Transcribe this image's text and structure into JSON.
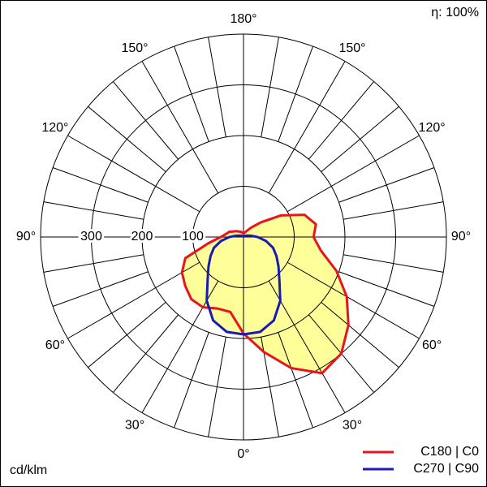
{
  "chart_data": {
    "type": "polar",
    "annotation": "η: 100%",
    "unit_label": "cd/klm",
    "angles": [
      0,
      10,
      20,
      30,
      40,
      50,
      60,
      70,
      80,
      90,
      100,
      110,
      120,
      130,
      140,
      150,
      160,
      170,
      180
    ],
    "angle_ticks": [
      {
        "value": 0,
        "label": "0°"
      },
      {
        "value": 30,
        "label": "30°"
      },
      {
        "value": 60,
        "label": "60°"
      },
      {
        "value": 90,
        "label": "90°"
      },
      {
        "value": 120,
        "label": "120°"
      },
      {
        "value": 150,
        "label": "150°"
      },
      {
        "value": 180,
        "label": "180°"
      }
    ],
    "rlim": [
      0,
      400
    ],
    "rticks": [
      100,
      200,
      300
    ],
    "fill_color": "#ffff99",
    "series": [
      {
        "name": "C180 | C0",
        "color": "#e8141e",
        "values": [
          190,
          230,
          275,
          310,
          300,
          270,
          235,
          195,
          155,
          138,
          145,
          128,
          85,
          45,
          25,
          15,
          10,
          8,
          8
        ],
        "mirror_values": [
          190,
          150,
          150,
          160,
          160,
          150,
          140,
          122,
          70,
          45,
          35,
          30,
          22,
          18,
          14,
          12,
          10,
          8,
          8
        ]
      },
      {
        "name": "C270 | C90",
        "color": "#1a1ab4",
        "values": [
          192,
          190,
          175,
          145,
          110,
          90,
          75,
          62,
          45,
          28,
          15,
          8,
          5,
          3,
          2,
          2,
          1,
          1,
          1
        ],
        "mirror_values": [
          192,
          190,
          175,
          145,
          110,
          90,
          75,
          62,
          45,
          28,
          15,
          8,
          5,
          3,
          2,
          2,
          1,
          1,
          1
        ]
      }
    ]
  }
}
